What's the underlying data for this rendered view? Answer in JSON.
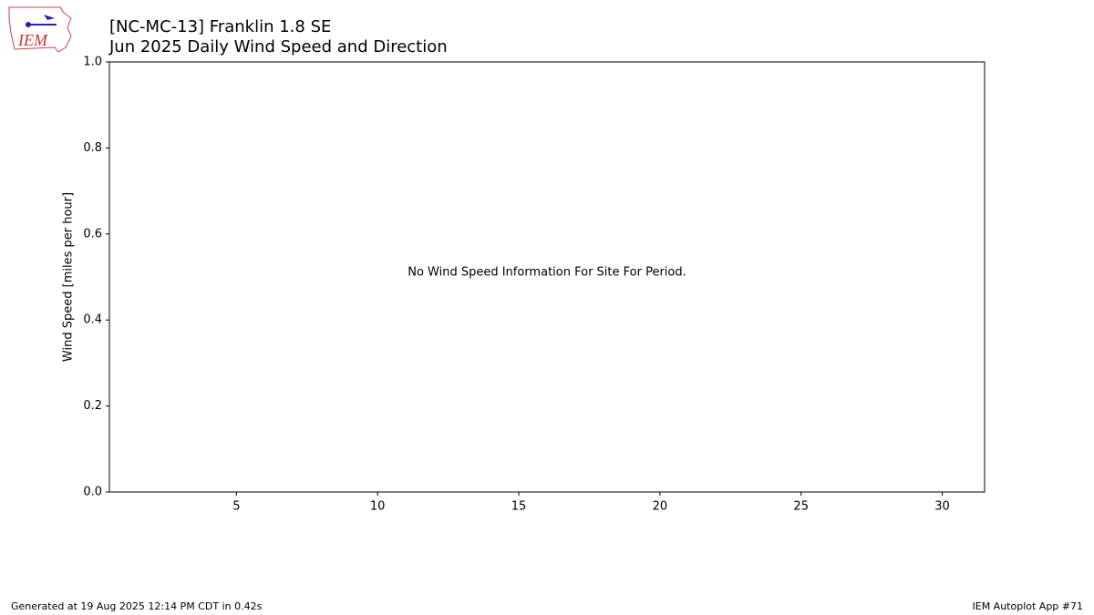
{
  "logo": "IEM",
  "chart_data": {
    "type": "bar",
    "title": "[NC-MC-13] Franklin 1.8 SE",
    "subtitle": "Jun 2025 Daily Wind Speed and Direction",
    "ylabel": "Wind Speed [miles per hour]",
    "annotation": "No Wind Speed Information For Site For Period.",
    "xlim": [
      0.5,
      31.5
    ],
    "xticks": [
      5,
      10,
      15,
      20,
      25,
      30
    ],
    "ylim": [
      0,
      1
    ],
    "yticks": [
      {
        "value": 0,
        "label": "0.0"
      },
      {
        "value": 0.2,
        "label": "0.2"
      },
      {
        "value": 0.4,
        "label": "0.4"
      },
      {
        "value": 0.6,
        "label": "0.6"
      },
      {
        "value": 0.8,
        "label": "0.8"
      },
      {
        "value": 1,
        "label": "1.0"
      }
    ],
    "grid": false
  },
  "footer": {
    "left": "Generated at 19 Aug 2025 12:14 PM CDT in 0.42s",
    "right": "IEM Autoplot App #71"
  }
}
